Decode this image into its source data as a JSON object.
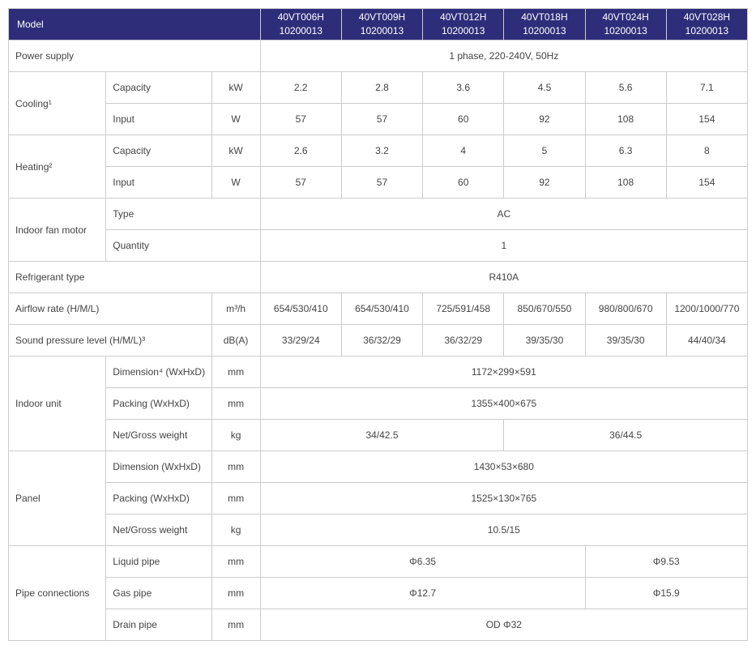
{
  "header": {
    "modelLabel": "Model",
    "models": [
      {
        "code": "40VT006H",
        "sub": "10200013"
      },
      {
        "code": "40VT009H",
        "sub": "10200013"
      },
      {
        "code": "40VT012H",
        "sub": "10200013"
      },
      {
        "code": "40VT018H",
        "sub": "10200013"
      },
      {
        "code": "40VT024H",
        "sub": "10200013"
      },
      {
        "code": "40VT028H",
        "sub": "10200013"
      }
    ]
  },
  "labels": {
    "powerSupply": "Power supply",
    "cooling": "Cooling¹",
    "heating": "Heating²",
    "capacity": "Capacity",
    "input": "Input",
    "indoorFanMotor": "Indoor fan motor",
    "type": "Type",
    "quantity": "Quantity",
    "refrigerantType": "Refrigerant type",
    "airflowRate": "Airflow rate (H/M/L)",
    "soundPressure": "Sound pressure level (H/M/L)³",
    "indoorUnit": "Indoor unit",
    "dimensionSup": "Dimension⁴ (WxHxD)",
    "dimension": "Dimension (WxHxD)",
    "packing": "Packing (WxHxD)",
    "netGross": "Net/Gross weight",
    "panel": "Panel",
    "pipeConnections": "Pipe connections",
    "liquidPipe": "Liquid pipe",
    "gasPipe": "Gas pipe",
    "drainPipe": "Drain pipe"
  },
  "units": {
    "kW": "kW",
    "W": "W",
    "m3h": "m³/h",
    "dBA": "dB(A)",
    "mm": "mm",
    "kg": "kg"
  },
  "values": {
    "powerSupply": "1 phase, 220-240V, 50Hz",
    "coolingCapacity": [
      "2.2",
      "2.8",
      "3.6",
      "4.5",
      "5.6",
      "7.1"
    ],
    "coolingInput": [
      "57",
      "57",
      "60",
      "92",
      "108",
      "154"
    ],
    "heatingCapacity": [
      "2.6",
      "3.2",
      "4",
      "5",
      "6.3",
      "8"
    ],
    "heatingInput": [
      "57",
      "57",
      "60",
      "92",
      "108",
      "154"
    ],
    "fanType": "AC",
    "fanQty": "1",
    "refrigerant": "R410A",
    "airflow": [
      "654/530/410",
      "654/530/410",
      "725/591/458",
      "850/670/550",
      "980/800/670",
      "1200/1000/770"
    ],
    "sound": [
      "33/29/24",
      "36/32/29",
      "36/32/29",
      "39/35/30",
      "39/35/30",
      "44/40/34"
    ],
    "indoorDimension": "1172×299×591",
    "indoorPacking": "1355×400×675",
    "indoorWeight1": "34/42.5",
    "indoorWeight2": "36/44.5",
    "panelDimension": "1430×53×680",
    "panelPacking": "1525×130×765",
    "panelWeight": "10.5/15",
    "liquidPipe1": "Φ6.35",
    "liquidPipe2": "Φ9.53",
    "gasPipe1": "Φ12.7",
    "gasPipe2": "Φ15.9",
    "drainPipe": "OD Φ32"
  },
  "style": {
    "headerBg": "#2e2d7a",
    "headerColor": "#ffffff",
    "borderColor": "#cccccc",
    "textColor": "#444444",
    "fontSize": 12
  }
}
